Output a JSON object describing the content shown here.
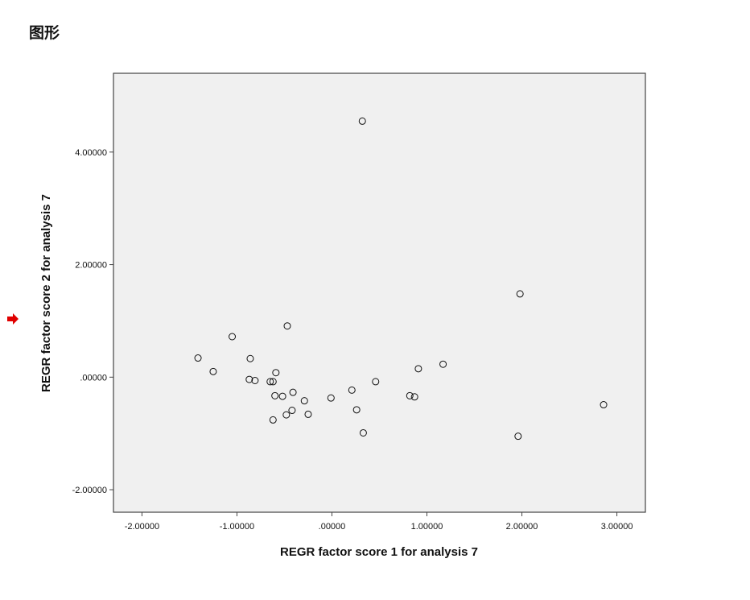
{
  "header": {
    "title": "图形"
  },
  "marker_icon": "red-arrow-icon",
  "colors": {
    "plot_background": "#f0f0f0",
    "frame": "#444444",
    "marker_outline": "#111111",
    "arrow": "#e00000"
  },
  "chart_data": {
    "type": "scatter",
    "title": "",
    "xlabel": "REGR factor score   1 for analysis 7",
    "ylabel": "REGR factor score   2 for analysis 7",
    "xlim": [
      -2.3,
      3.3
    ],
    "ylim": [
      -2.4,
      5.4
    ],
    "xticks": [
      -2,
      -1,
      0,
      1,
      2,
      3
    ],
    "xtick_labels": [
      "-2.00000",
      "-1.00000",
      ".00000",
      "1.00000",
      "2.00000",
      "3.00000"
    ],
    "yticks": [
      -2,
      0,
      2,
      4
    ],
    "ytick_labels": [
      "-2.00000",
      ".00000",
      "2.00000",
      "4.00000"
    ],
    "grid": false,
    "legend": false,
    "marker": "open-circle",
    "x": [
      0.32,
      1.98,
      -0.47,
      -1.05,
      -1.41,
      -0.86,
      -1.25,
      1.17,
      0.91,
      -0.59,
      -0.87,
      -0.81,
      -0.65,
      -0.62,
      0.46,
      -0.6,
      -0.52,
      -0.41,
      0.21,
      -0.29,
      -0.01,
      0.82,
      0.87,
      2.86,
      -0.42,
      0.26,
      -0.48,
      -0.25,
      -0.62,
      0.33,
      1.96
    ],
    "y": [
      4.55,
      1.48,
      0.91,
      0.72,
      0.34,
      0.33,
      0.1,
      0.23,
      0.15,
      0.08,
      -0.04,
      -0.06,
      -0.08,
      -0.08,
      -0.08,
      -0.33,
      -0.34,
      -0.27,
      -0.23,
      -0.42,
      -0.37,
      -0.33,
      -0.35,
      -0.49,
      -0.59,
      -0.58,
      -0.67,
      -0.66,
      -0.76,
      -0.99,
      -1.05
    ]
  }
}
